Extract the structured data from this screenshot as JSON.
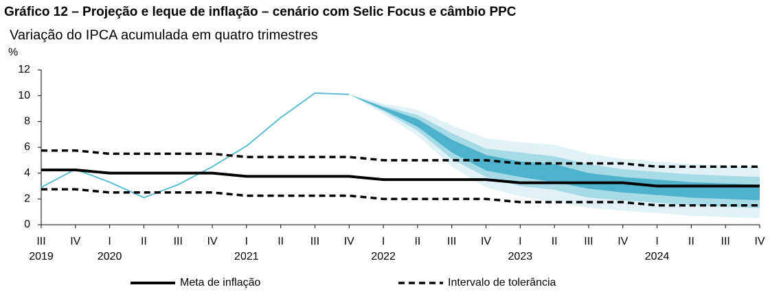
{
  "chart_data": {
    "type": "line",
    "title": "Gráfico 12 – Projeção e leque de inflação – cenário com Selic Focus e câmbio PPC",
    "subtitle": "Variação do IPCA acumulada em quatro trimestres",
    "y_label": "%",
    "categories": [
      "III",
      "IV",
      "I",
      "II",
      "III",
      "IV",
      "I",
      "II",
      "III",
      "IV",
      "I",
      "II",
      "III",
      "IV",
      "I",
      "II",
      "III",
      "IV",
      "I",
      "II",
      "III",
      "IV"
    ],
    "years": [
      "2019",
      null,
      "2020",
      null,
      null,
      null,
      "2021",
      null,
      null,
      null,
      "2022",
      null,
      null,
      null,
      "2023",
      null,
      null,
      null,
      "2024",
      null,
      null,
      null
    ],
    "ylim": [
      0,
      12
    ],
    "yticks": [
      0,
      2,
      4,
      6,
      8,
      10,
      12
    ],
    "grid": false,
    "fan": [
      {
        "color": "#e1f2f7",
        "lower": [
          null,
          null,
          null,
          null,
          null,
          null,
          null,
          null,
          null,
          10.1,
          8.6,
          6.9,
          4.5,
          2.9,
          2.2,
          1.8,
          1.3,
          1.1,
          0.9,
          0.7,
          0.6,
          0.5
        ],
        "upper": [
          null,
          null,
          null,
          null,
          null,
          null,
          null,
          null,
          null,
          10.1,
          9.4,
          8.9,
          7.7,
          6.7,
          6.4,
          6.2,
          5.5,
          5.1,
          4.9,
          4.7,
          4.6,
          4.5
        ]
      },
      {
        "color": "#a6dae7",
        "lower": [
          null,
          null,
          null,
          null,
          null,
          null,
          null,
          null,
          null,
          10.1,
          8.8,
          7.3,
          5.1,
          3.7,
          3.0,
          2.7,
          2.1,
          1.9,
          1.7,
          1.5,
          1.4,
          1.3
        ],
        "upper": [
          null,
          null,
          null,
          null,
          null,
          null,
          null,
          null,
          null,
          10.1,
          9.2,
          8.5,
          7.1,
          5.9,
          5.6,
          5.3,
          4.7,
          4.3,
          4.1,
          3.9,
          3.8,
          3.7
        ]
      },
      {
        "color": "#4fb2cb",
        "lower": [
          null,
          null,
          null,
          null,
          null,
          null,
          null,
          null,
          null,
          10.1,
          8.9,
          7.6,
          5.6,
          4.2,
          3.7,
          3.3,
          2.8,
          2.5,
          2.3,
          2.1,
          2.0,
          1.9
        ],
        "upper": [
          null,
          null,
          null,
          null,
          null,
          null,
          null,
          null,
          null,
          10.1,
          9.1,
          8.2,
          6.6,
          5.4,
          4.9,
          4.7,
          4.0,
          3.7,
          3.5,
          3.3,
          3.2,
          3.1
        ]
      }
    ],
    "series": [
      {
        "color": "#5bbdd2",
        "width": 2,
        "dash": false,
        "values": [
          2.9,
          4.3,
          3.3,
          2.1,
          3.1,
          4.5,
          6.1,
          8.3,
          10.2,
          10.1,
          null,
          null,
          null,
          null,
          null,
          null,
          null,
          null,
          null,
          null,
          null,
          null
        ]
      },
      {
        "name": "Meta de inflação",
        "color": "#000000",
        "width": 4,
        "dash": false,
        "values": [
          4.25,
          4.25,
          4.0,
          4.0,
          4.0,
          4.0,
          3.75,
          3.75,
          3.75,
          3.75,
          3.5,
          3.5,
          3.5,
          3.5,
          3.25,
          3.25,
          3.25,
          3.25,
          3.0,
          3.0,
          3.0,
          3.0
        ]
      },
      {
        "name": "Intervalo de tolerância",
        "color": "#000000",
        "width": 3.5,
        "dash": true,
        "values": [
          5.75,
          5.75,
          5.5,
          5.5,
          5.5,
          5.5,
          5.25,
          5.25,
          5.25,
          5.25,
          5.0,
          5.0,
          5.0,
          5.0,
          4.75,
          4.75,
          4.75,
          4.75,
          4.5,
          4.5,
          4.5,
          4.5
        ]
      },
      {
        "color": "#000000",
        "width": 3.5,
        "dash": true,
        "values": [
          2.75,
          2.75,
          2.5,
          2.5,
          2.5,
          2.5,
          2.25,
          2.25,
          2.25,
          2.25,
          2.0,
          2.0,
          2.0,
          2.0,
          1.75,
          1.75,
          1.75,
          1.75,
          1.5,
          1.5,
          1.5,
          1.5
        ]
      }
    ]
  }
}
